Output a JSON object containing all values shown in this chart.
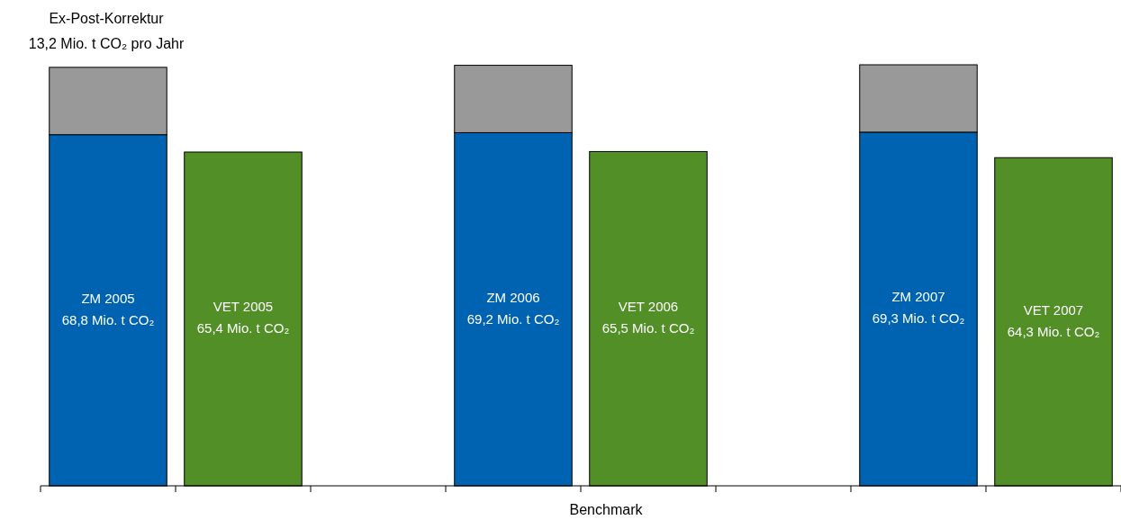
{
  "chart_data": {
    "type": "bar",
    "stacked": true,
    "xlabel": "Benchmark",
    "categories": [
      null,
      null,
      null,
      null,
      null,
      null
    ],
    "series": [
      {
        "color": "#0063b2",
        "values": [
          68.8,
          null,
          69.2,
          null,
          69.3,
          null
        ],
        "value_labels": [
          "ZM 2005\n68,8 Mio. t CO₂",
          null,
          "ZM 2006\n69,2 Mio. t CO₂",
          null,
          "ZM 2007\n69,3 Mio. t CO₂",
          null
        ]
      },
      {
        "color": "#999999",
        "values": [
          13.2,
          null,
          13.2,
          null,
          13.2,
          null
        ]
      },
      {
        "color": "#528f27",
        "values": [
          null,
          65.4,
          null,
          65.5,
          null,
          64.3
        ],
        "value_labels": [
          null,
          "VET 2005\n65,4 Mio. t CO₂",
          null,
          "VET 2006\n65,5 Mio. t CO₂",
          null,
          "VET 2007\n64,3 Mio. t CO₂"
        ]
      }
    ],
    "annotations": [
      "Ex-Post-Korrektur\n13,2 Mio. t CO₂ pro Jahr"
    ]
  }
}
